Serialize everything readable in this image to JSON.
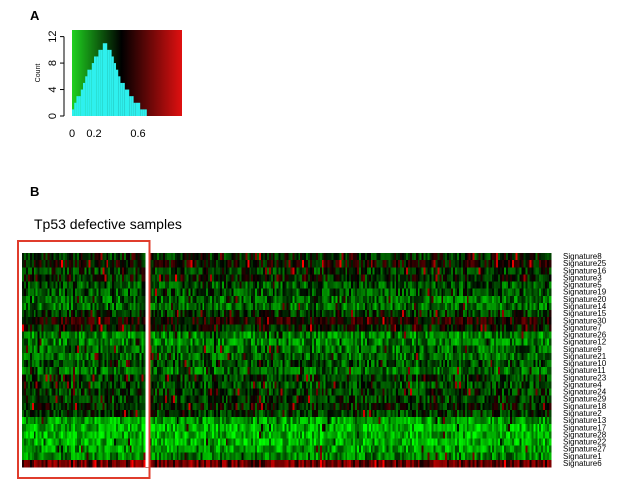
{
  "panels": {
    "a_label": "A",
    "b_label": "B",
    "b_subtitle": "Tp53 defective samples"
  },
  "chart_data": [
    {
      "type": "bar",
      "title": "",
      "xlabel": "",
      "ylabel": "Count",
      "xlim": [
        0,
        1
      ],
      "ylim": [
        0,
        13
      ],
      "x_ticks": [
        "0",
        "0.2",
        "0.6"
      ],
      "y_ticks": [
        "0",
        "4",
        "8",
        "12"
      ],
      "background": "color key gradient green-black-red",
      "bar_color": "#2ef0ee",
      "bins": [
        0.0,
        0.02,
        0.04,
        0.06,
        0.08,
        0.1,
        0.12,
        0.14,
        0.16,
        0.18,
        0.2,
        0.22,
        0.24,
        0.26,
        0.28,
        0.3,
        0.32,
        0.34,
        0.36,
        0.38,
        0.4,
        0.42,
        0.44,
        0.46,
        0.48,
        0.5,
        0.52,
        0.54,
        0.56,
        0.58,
        0.6,
        0.62,
        0.64,
        0.66,
        0.68,
        0.7
      ],
      "values": [
        1,
        2,
        3,
        3,
        4,
        5,
        6,
        7,
        7,
        8,
        9,
        9,
        10,
        10,
        11,
        11,
        10,
        10,
        9,
        8,
        7,
        6,
        5,
        5,
        4,
        4,
        3,
        3,
        2,
        2,
        2,
        1,
        1,
        1,
        0,
        0
      ]
    },
    {
      "type": "heatmap",
      "title": "Tp53 defective samples",
      "colors": {
        "low": "#00ff00",
        "mid": "#000000",
        "high": "#ff0000"
      },
      "rows": [
        "Signature8",
        "Signature25",
        "Signature16",
        "Signature3",
        "Signature5",
        "Signature19",
        "Signature20",
        "Signature14",
        "Signature15",
        "Signature30",
        "Signature7",
        "Signature26",
        "Signature12",
        "Signature9",
        "Signature21",
        "Signature10",
        "Signature11",
        "Signature23",
        "Signature4",
        "Signature24",
        "Signature29",
        "Signature18",
        "Signature2",
        "Signature13",
        "Signature17",
        "Signature28",
        "Signature22",
        "Signature27",
        "Signature1",
        "Signature6"
      ],
      "row_levels": [
        0.45,
        0.5,
        0.4,
        0.45,
        0.35,
        0.35,
        0.3,
        0.3,
        0.4,
        0.55,
        0.45,
        0.25,
        0.25,
        0.3,
        0.3,
        0.35,
        0.3,
        0.4,
        0.35,
        0.4,
        0.4,
        0.45,
        0.4,
        0.2,
        0.15,
        0.15,
        0.15,
        0.2,
        0.25,
        0.7
      ],
      "columns": 270,
      "highlight": {
        "columns_from": 0,
        "columns_to": 62,
        "color": "#e03c2c"
      }
    }
  ]
}
